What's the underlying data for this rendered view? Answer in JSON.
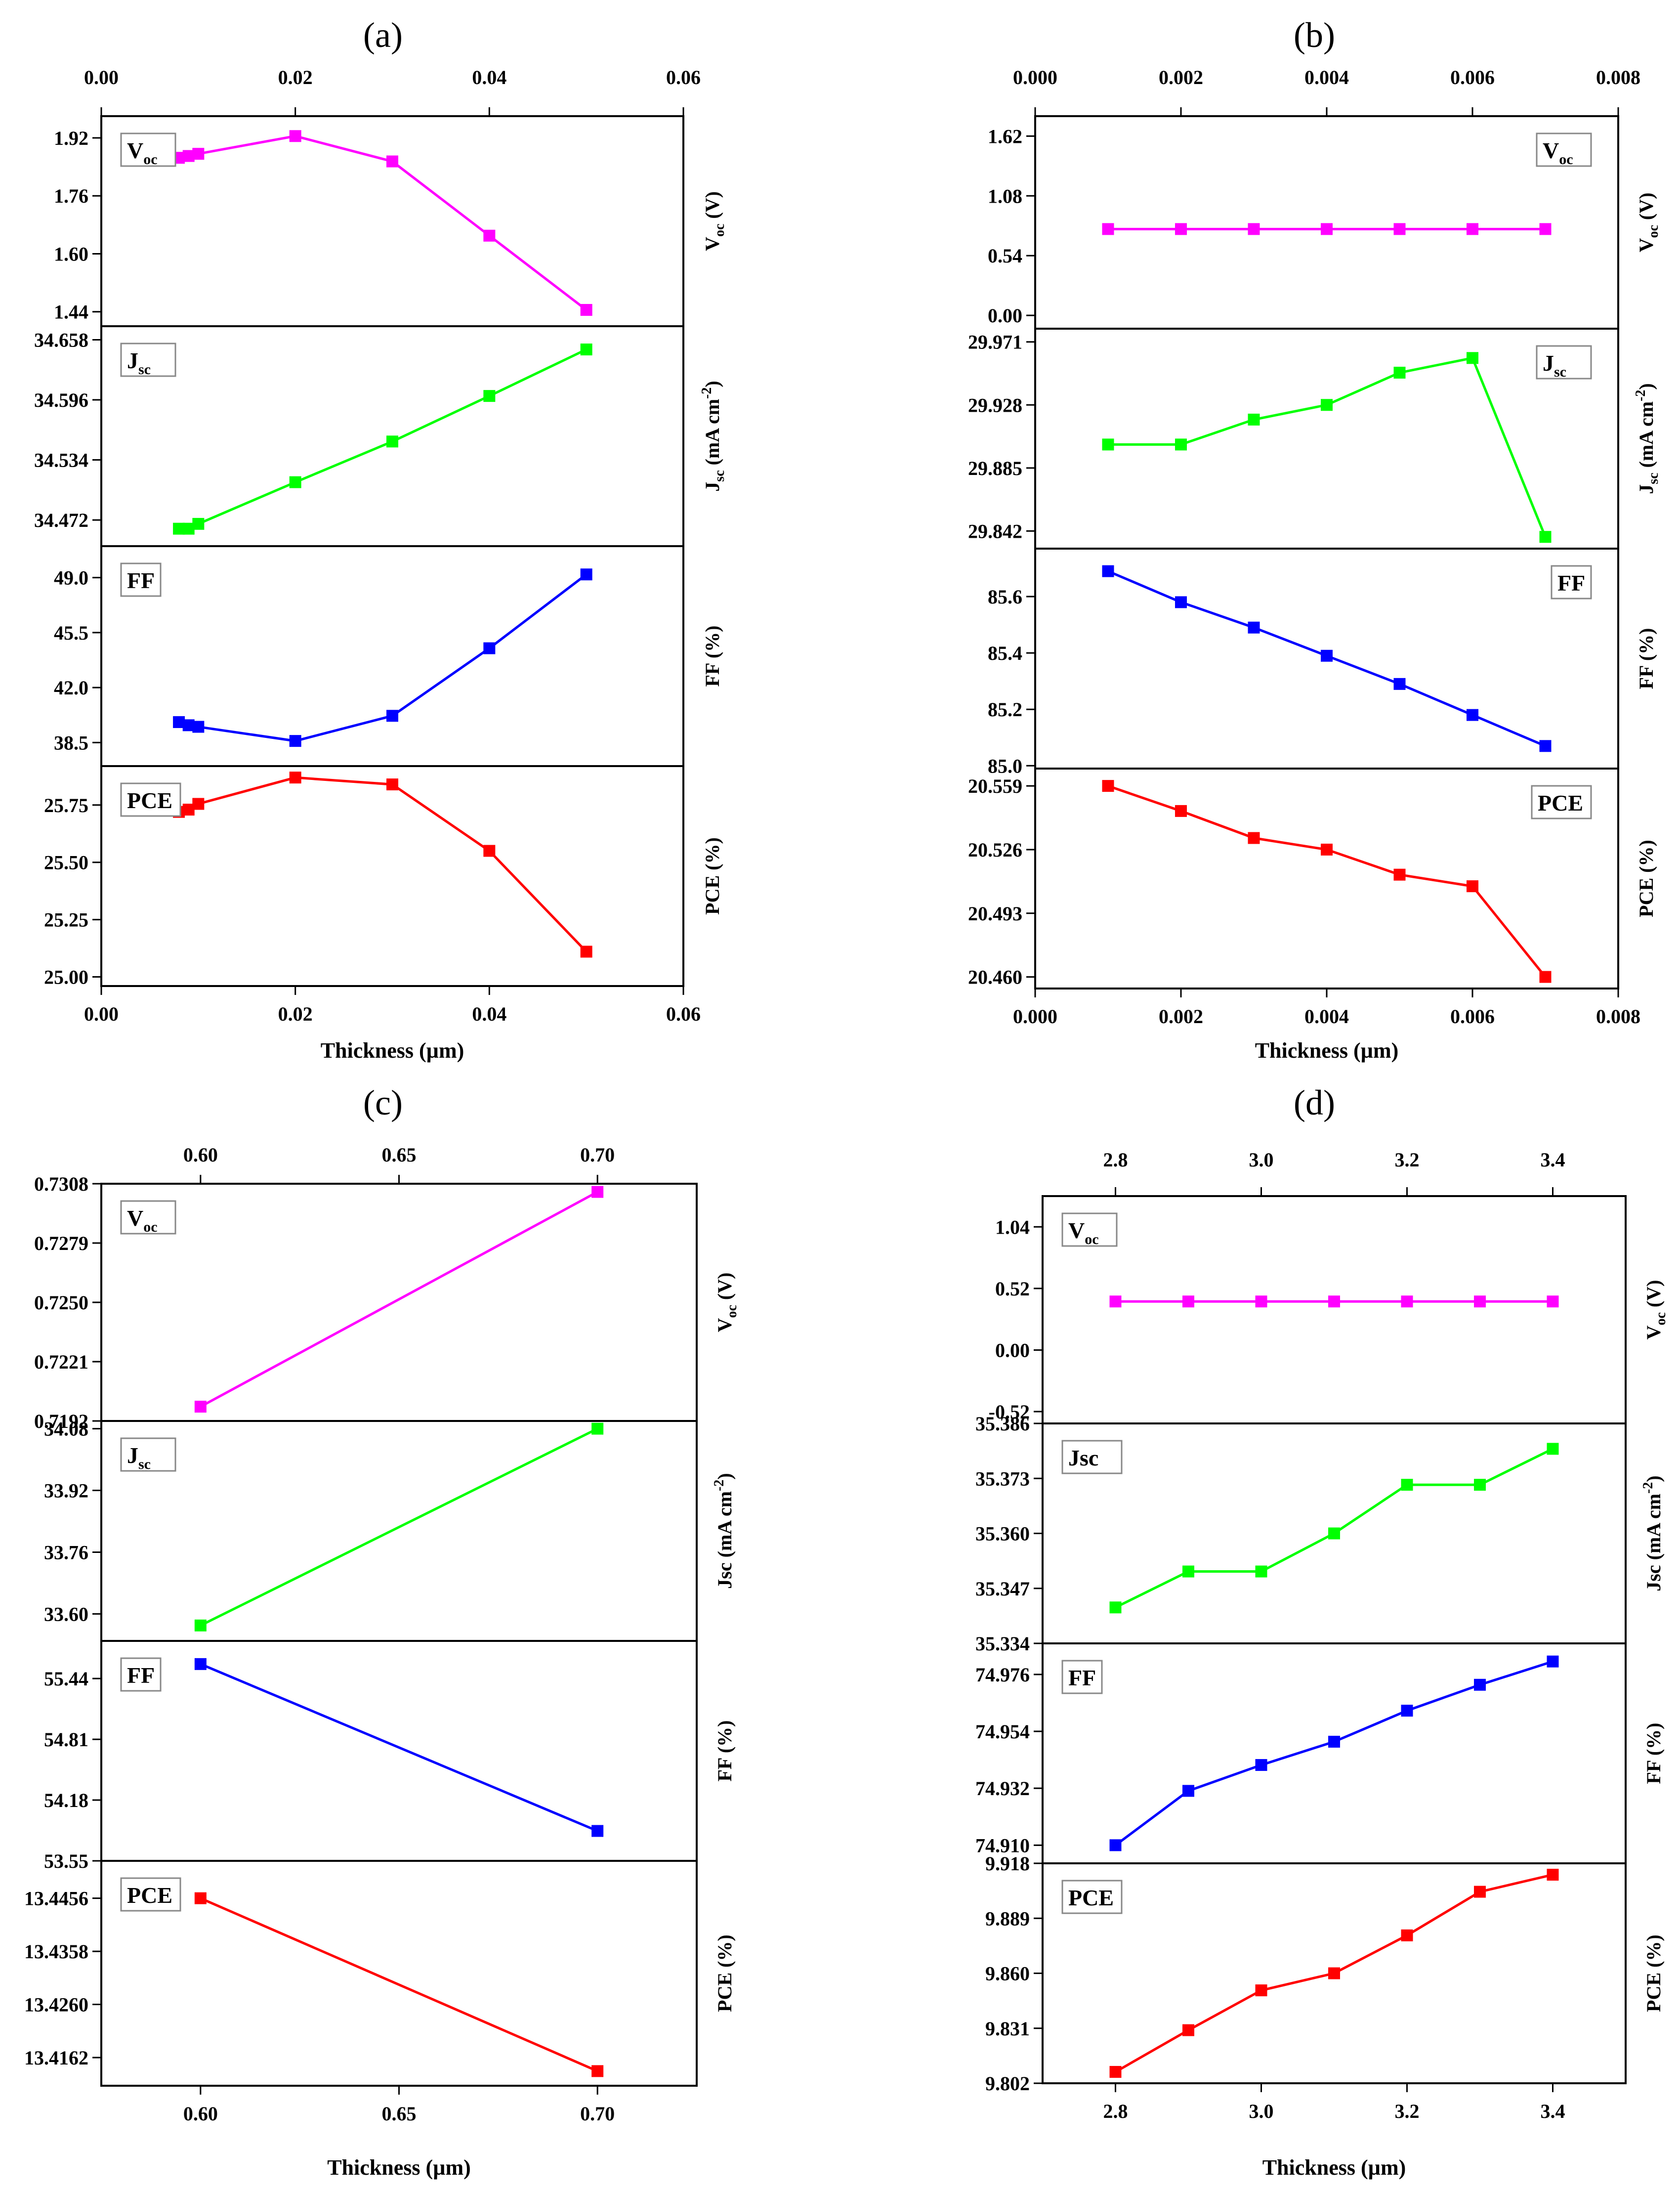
{
  "figure": {
    "colors": {
      "voc": "#ff00ff",
      "jsc": "#00ff00",
      "ff": "#0000ff",
      "pce": "#ff0000",
      "frame": "#000000"
    }
  },
  "chart_data": [
    {
      "panel_label": "(a)",
      "type": "line",
      "xlabel": "Thickness (µm)",
      "xlim": [
        0,
        0.06
      ],
      "xticks": [
        "0.00",
        "0.02",
        "0.04",
        "0.06"
      ],
      "top_xticks": [
        "0.00",
        "0.02",
        "0.04",
        "0.06"
      ],
      "x": [
        0.008,
        0.009,
        0.01,
        0.02,
        0.03,
        0.04,
        0.05
      ],
      "series": [
        {
          "key": "voc",
          "name": "Voc",
          "legend": "V",
          "legend_sub": "oc",
          "ylabel": "V",
          "ylabel_sub": "oc",
          "ylabel_rest": " (V)",
          "ylim": [
            1.4,
            1.98
          ],
          "yticks": [
            "1.44",
            "1.60",
            "1.76",
            "1.92"
          ],
          "legend_pos": "top-left",
          "values": [
            1.865,
            1.87,
            1.876,
            1.925,
            1.855,
            1.65,
            1.445
          ]
        },
        {
          "key": "jsc",
          "name": "Jsc",
          "legend": "J",
          "legend_sub": "sc",
          "ylabel": "J",
          "ylabel_sub": "sc",
          "ylabel_rest": " (mA cm",
          "ylabel_sup": "-2",
          "ylabel_end": ")",
          "ylim": [
            34.445,
            34.672
          ],
          "yticks": [
            "34.472",
            "34.534",
            "34.596",
            "34.658"
          ],
          "legend_pos": "top-left",
          "values": [
            34.463,
            34.463,
            34.468,
            34.511,
            34.553,
            34.6,
            34.648
          ]
        },
        {
          "key": "ff",
          "name": "FF",
          "legend": "FF",
          "ylabel": "FF (%)",
          "ylim": [
            37.0,
            51.0
          ],
          "yticks": [
            "38.5",
            "42.0",
            "45.5",
            "49.0"
          ],
          "legend_pos": "top-left",
          "values": [
            39.8,
            39.6,
            39.5,
            38.6,
            40.2,
            44.5,
            49.2
          ]
        },
        {
          "key": "pce",
          "name": "PCE",
          "legend": "PCE",
          "ylabel": "PCE (%)",
          "ylim": [
            24.96,
            25.92
          ],
          "yticks": [
            "25.00",
            "25.25",
            "25.50",
            "25.75"
          ],
          "legend_pos": "top-left",
          "values": [
            25.72,
            25.73,
            25.755,
            25.87,
            25.84,
            25.55,
            25.11
          ]
        }
      ]
    },
    {
      "panel_label": "(b)",
      "type": "line",
      "xlabel": "Thickness (µm)",
      "xlim": [
        0,
        0.008
      ],
      "xticks": [
        "0.000",
        "0.002",
        "0.004",
        "0.006",
        "0.008"
      ],
      "top_xticks": [
        "0.000",
        "0.002",
        "0.004",
        "0.006",
        "0.008"
      ],
      "x": [
        0.001,
        0.002,
        0.003,
        0.004,
        0.005,
        0.006,
        0.007
      ],
      "series": [
        {
          "key": "voc",
          "name": "Voc",
          "legend": "V",
          "legend_sub": "oc",
          "ylabel": "V",
          "ylabel_sub": "oc",
          "ylabel_rest": " (V)",
          "ylim": [
            -0.12,
            1.8
          ],
          "yticks": [
            "0.00",
            "0.54",
            "1.08",
            "1.62"
          ],
          "legend_pos": "top-right",
          "values": [
            0.78,
            0.78,
            0.78,
            0.78,
            0.78,
            0.78,
            0.78
          ]
        },
        {
          "key": "jsc",
          "name": "Jsc",
          "legend": "J",
          "legend_sub": "sc",
          "ylabel": "J",
          "ylabel_sub": "sc",
          "ylabel_rest": " (mA cm",
          "ylabel_sup": "-2",
          "ylabel_end": ")",
          "ylim": [
            29.83,
            29.98
          ],
          "yticks": [
            "29.842",
            "29.885",
            "29.928",
            "29.971"
          ],
          "legend_pos": "top-right",
          "values": [
            29.901,
            29.901,
            29.918,
            29.928,
            29.95,
            29.96,
            29.838
          ]
        },
        {
          "key": "ff",
          "name": "FF",
          "legend": "FF",
          "ylabel": "FF (%)",
          "ylim": [
            84.99,
            85.77
          ],
          "yticks": [
            "85.0",
            "85.2",
            "85.4",
            "85.6"
          ],
          "legend_pos": "top-right",
          "values": [
            85.69,
            85.58,
            85.49,
            85.39,
            85.29,
            85.18,
            85.07
          ]
        },
        {
          "key": "pce",
          "name": "PCE",
          "legend": "PCE",
          "ylabel": "PCE (%)",
          "ylim": [
            20.454,
            20.568
          ],
          "yticks": [
            "20.460",
            "20.493",
            "20.526",
            "20.559"
          ],
          "legend_pos": "top-right",
          "values": [
            20.559,
            20.546,
            20.532,
            20.526,
            20.513,
            20.507,
            20.46
          ]
        }
      ]
    },
    {
      "panel_label": "(c)",
      "type": "line",
      "xlabel": "Thickness (µm)",
      "xlim": [
        0.575,
        0.725
      ],
      "xticks": [
        "0.60",
        "0.65",
        "0.70"
      ],
      "top_xticks": [
        "0.60",
        "0.65",
        "0.70"
      ],
      "x": [
        0.6,
        0.7
      ],
      "series": [
        {
          "key": "voc",
          "name": "Voc",
          "legend": "V",
          "legend_sub": "oc",
          "ylabel": "V",
          "ylabel_sub": "oc",
          "ylabel_rest": " (V)",
          "ylim": [
            0.7192,
            0.7308
          ],
          "yticks": [
            "0.7192",
            "0.7221",
            "0.7250",
            "0.7279",
            "0.7308"
          ],
          "legend_pos": "top-left",
          "values": [
            0.7199,
            0.7304
          ]
        },
        {
          "key": "jsc",
          "name": "Jsc",
          "legend": "J",
          "legend_sub": "sc",
          "ylabel": "Jsc (mA cm",
          "ylabel_sup": "-2",
          "ylabel_end": ")",
          "ylim": [
            33.53,
            34.1
          ],
          "yticks": [
            "33.60",
            "33.76",
            "33.92",
            "34.08"
          ],
          "legend_pos": "top-left",
          "values": [
            33.57,
            34.08
          ]
        },
        {
          "key": "ff",
          "name": "FF",
          "legend": "FF",
          "ylabel": "FF (%)",
          "ylim": [
            53.55,
            55.83
          ],
          "yticks": [
            "53.55",
            "54.18",
            "54.81",
            "55.44"
          ],
          "legend_pos": "top-left",
          "values": [
            55.59,
            53.86
          ]
        },
        {
          "key": "pce",
          "name": "PCE",
          "legend": "PCE",
          "ylabel": "PCE (%)",
          "ylim": [
            13.411,
            13.4525
          ],
          "yticks": [
            "13.4162",
            "13.4260",
            "13.4358",
            "13.4456"
          ],
          "legend_pos": "top-left",
          "values": [
            13.4456,
            13.4137
          ]
        }
      ]
    },
    {
      "panel_label": "(d)",
      "type": "line",
      "xlabel": "Thickness (µm)",
      "xlim": [
        2.7,
        3.5
      ],
      "xticks": [
        "2.8",
        "3.0",
        "3.2",
        "3.4"
      ],
      "top_xticks": [
        "2.8",
        "3.0",
        "3.2",
        "3.4"
      ],
      "x": [
        2.8,
        2.9,
        3.0,
        3.1,
        3.2,
        3.3,
        3.4
      ],
      "series": [
        {
          "key": "voc",
          "name": "Voc",
          "legend": "V",
          "legend_sub": "oc",
          "ylabel": "V",
          "ylabel_sub": "oc",
          "ylabel_rest": " (V)",
          "ylim": [
            -0.62,
            1.3
          ],
          "yticks": [
            "-0.52",
            "0.00",
            "0.52",
            "1.04"
          ],
          "legend_pos": "top-left",
          "values": [
            0.41,
            0.41,
            0.41,
            0.41,
            0.41,
            0.41,
            0.41
          ]
        },
        {
          "key": "jsc",
          "name": "Jsc",
          "legend": "Jsc",
          "ylabel": "Jsc (mA cm",
          "ylabel_sup": "-2",
          "ylabel_end": ")",
          "ylim": [
            35.334,
            35.386
          ],
          "yticks": [
            "35.334",
            "35.347",
            "35.360",
            "35.373",
            "35.386"
          ],
          "legend_pos": "top-left",
          "values": [
            35.3425,
            35.351,
            35.351,
            35.36,
            35.3715,
            35.3715,
            35.38
          ]
        },
        {
          "key": "ff",
          "name": "FF",
          "legend": "FF",
          "ylabel": "FF (%)",
          "ylim": [
            74.903,
            74.988
          ],
          "yticks": [
            "74.910",
            "74.932",
            "74.954",
            "74.976"
          ],
          "legend_pos": "top-left",
          "values": [
            74.91,
            74.931,
            74.941,
            74.95,
            74.962,
            74.972,
            74.981
          ]
        },
        {
          "key": "pce",
          "name": "PCE",
          "legend": "PCE",
          "ylabel": "PCE (%)",
          "ylim": [
            9.802,
            9.918
          ],
          "yticks": [
            "9.802",
            "9.831",
            "9.860",
            "9.889",
            "9.918"
          ],
          "legend_pos": "top-left",
          "values": [
            9.808,
            9.83,
            9.851,
            9.86,
            9.88,
            9.903,
            9.912
          ]
        }
      ]
    }
  ]
}
